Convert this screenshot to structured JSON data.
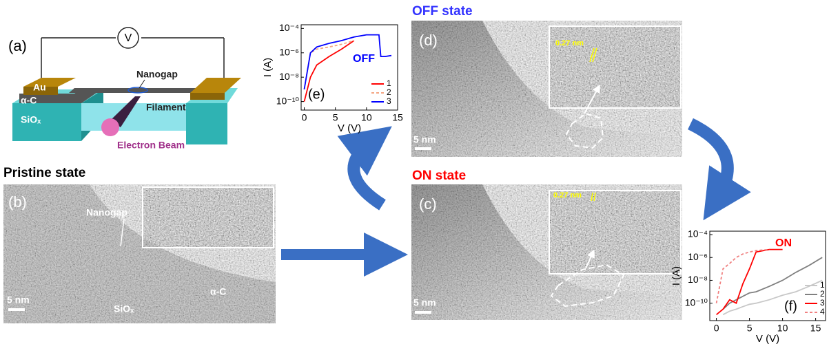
{
  "panels": {
    "a": {
      "label": "(a)",
      "meter": "V",
      "au": "Au",
      "carbon": "α-C",
      "oxide": "SiOₓ",
      "nanogap": "Nanogap",
      "filament": "Filament",
      "beam": "Electron Beam"
    },
    "b": {
      "title": "Pristine state",
      "label": "(b)",
      "nanogap": "Nanogap",
      "carbon": "α-C",
      "oxide": "SiOₓ",
      "scale": "5 nm"
    },
    "c": {
      "title": "ON state",
      "label": "(c)",
      "spacing": "0.27 nm",
      "scale": "5 nm"
    },
    "d": {
      "title": "OFF state",
      "label": "(d)",
      "spacing": "0.27 nm",
      "scale": "5 nm"
    }
  },
  "chart_data": [
    {
      "type": "line",
      "label": "(e)",
      "annotation": "OFF",
      "x_label": "V (V)",
      "y_label": "I (A)",
      "log_y": true,
      "x": [
        0,
        1,
        2,
        4,
        6,
        8,
        10,
        12,
        12.3,
        13,
        14
      ],
      "series": [
        {
          "name": "1",
          "color": "#ff0000",
          "dash": false,
          "values": [
            1e-10,
            1e-08,
            1e-07,
            5e-07,
            2e-06,
            1e-05,
            null,
            null,
            null,
            null,
            null
          ]
        },
        {
          "name": "2",
          "color": "#f4a582",
          "dash": true,
          "values": [
            1e-09,
            1e-06,
            2e-06,
            3e-06,
            5e-06,
            1e-05,
            null,
            null,
            null,
            null,
            null
          ]
        },
        {
          "name": "3",
          "color": "#0000ff",
          "dash": false,
          "values": [
            1e-09,
            1e-06,
            3e-06,
            6e-06,
            1e-05,
            2e-05,
            3e-05,
            3e-05,
            5e-07,
            5e-07,
            6e-07
          ]
        }
      ],
      "xlim": [
        -0.5,
        15
      ],
      "xticks": [
        0,
        5,
        10,
        15
      ],
      "ylim": [
        2e-11,
        0.0002
      ],
      "yticks": [
        {
          "value": 1e-10,
          "label": "10⁻¹⁰"
        },
        {
          "value": 1e-08,
          "label": "10⁻⁸"
        },
        {
          "value": 1e-06,
          "label": "10⁻⁶"
        },
        {
          "value": 0.0001,
          "label": "10⁻⁴"
        }
      ]
    },
    {
      "type": "line",
      "label": "(f)",
      "annotation": "ON",
      "x_label": "V (V)",
      "y_label": "I (A)",
      "log_y": true,
      "x": [
        0,
        1,
        2,
        3,
        4,
        5,
        6,
        8,
        10,
        12,
        14,
        16
      ],
      "series": [
        {
          "name": "1",
          "color": "#c8c8c8",
          "dash": false,
          "values": [
            null,
            1e-11,
            2e-11,
            3e-11,
            5e-11,
            8e-11,
            1e-10,
            2e-10,
            5e-10,
            1e-09,
            3e-09,
            1e-08
          ]
        },
        {
          "name": "2",
          "color": "#808080",
          "dash": false,
          "values": [
            null,
            3e-11,
            1e-10,
            2e-10,
            4e-10,
            8e-10,
            1e-09,
            3e-09,
            1e-08,
            5e-08,
            2e-07,
            1e-06
          ]
        },
        {
          "name": "3",
          "color": "#ff0000",
          "dash": false,
          "values": [
            1e-11,
            3e-11,
            2e-10,
            1e-10,
            5e-09,
            1e-07,
            3e-06,
            5e-06,
            5e-06,
            null,
            null,
            null
          ]
        },
        {
          "name": "4",
          "color": "#f08080",
          "dash": true,
          "values": [
            1e-10,
            1e-07,
            3e-07,
            1e-06,
            2e-06,
            3e-06,
            4e-06,
            5e-06,
            null,
            null,
            null,
            null
          ]
        }
      ],
      "xlim": [
        -1,
        16.5
      ],
      "xticks": [
        0,
        5,
        10,
        15
      ],
      "ylim": [
        3e-12,
        0.0002
      ],
      "yticks": [
        {
          "value": 1e-10,
          "label": "10⁻¹⁰"
        },
        {
          "value": 1e-08,
          "label": "10⁻⁸"
        },
        {
          "value": 1e-06,
          "label": "10⁻⁶"
        },
        {
          "value": 0.0001,
          "label": "10⁻⁴"
        }
      ]
    }
  ]
}
